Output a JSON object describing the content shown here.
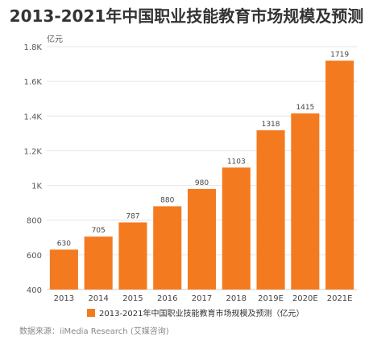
{
  "chart_data": {
    "type": "bar",
    "title": "2013-2021年中国职业技能教育市场规模及预测",
    "unit_label": "亿元",
    "categories": [
      "2013",
      "2014",
      "2015",
      "2016",
      "2017",
      "2018",
      "2019E",
      "2020E",
      "2021E"
    ],
    "series": [
      {
        "name": "2013-2021年中国职业技能教育市场规模及预测（亿元）",
        "values": [
          630,
          705,
          787,
          880,
          980,
          1103,
          1318,
          1415,
          1719
        ],
        "color": "#F47A20"
      }
    ],
    "ylim": [
      400,
      1800
    ],
    "yticks": [
      400,
      600,
      800,
      1000,
      1200,
      1400,
      1600,
      1800
    ],
    "ytick_labels": [
      "400",
      "600",
      "800",
      "1K",
      "1.2K",
      "1.4K",
      "1.6K",
      "1.8K"
    ],
    "grid": true,
    "legend_position": "bottom",
    "source": "数据来源：iiMedia Research (艾媒咨询)"
  }
}
